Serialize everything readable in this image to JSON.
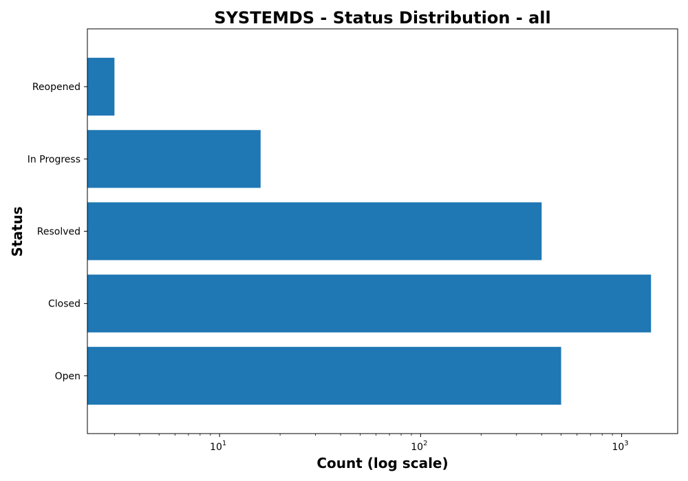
{
  "chart_data": {
    "type": "bar",
    "orientation": "horizontal",
    "title": "SYSTEMDS - Status Distribution - all",
    "xlabel": "Count (log scale)",
    "ylabel": "Status",
    "xscale": "log",
    "xlim": [
      2.2,
      1900
    ],
    "x_ticks": [
      {
        "base": "10",
        "exp": "1",
        "value": 10
      },
      {
        "base": "10",
        "exp": "2",
        "value": 100
      },
      {
        "base": "10",
        "exp": "3",
        "value": 1000
      }
    ],
    "categories": [
      "Open",
      "Closed",
      "Resolved",
      "In Progress",
      "Reopened"
    ],
    "values": [
      500,
      1400,
      400,
      16,
      3
    ],
    "bar_color": "#1f77b4",
    "grid": false,
    "legend": false
  }
}
